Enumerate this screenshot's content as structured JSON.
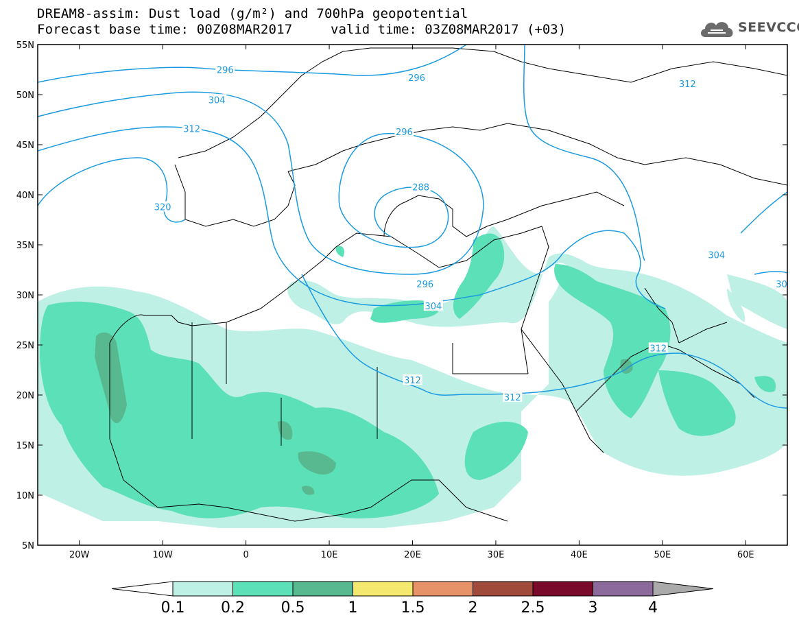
{
  "header": {
    "title_line1": "DREAM8-assim: Dust load (g/m²) and 700hPa geopotential",
    "title_line2": "Forecast base time: 00Z08MAR2017",
    "valid_time": "valid time: 03Z08MAR2017 (+03)",
    "logo_text": "SEEVCCC",
    "logo_icon": "cloud-icon"
  },
  "map": {
    "lon_range": [
      -25,
      65
    ],
    "lat_range": [
      5,
      55
    ],
    "lat_labels": [
      "55N",
      "50N",
      "45N",
      "40N",
      "35N",
      "30N",
      "25N",
      "20N",
      "15N",
      "10N",
      "5N"
    ],
    "lon_labels": [
      "20W",
      "10W",
      "0",
      "10E",
      "20E",
      "30E",
      "40E",
      "50E",
      "60E"
    ],
    "contour_color": "#1a9be0",
    "contour_labels": [
      {
        "text": "296",
        "lon": -2.5,
        "lat": 52.5
      },
      {
        "text": "296",
        "lon": 20.5,
        "lat": 51.7
      },
      {
        "text": "304",
        "lon": -3.5,
        "lat": 49.5
      },
      {
        "text": "312",
        "lon": -6.5,
        "lat": 46.6
      },
      {
        "text": "312",
        "lon": 53,
        "lat": 51.1
      },
      {
        "text": "296",
        "lon": 19,
        "lat": 46.3
      },
      {
        "text": "288",
        "lon": 21,
        "lat": 40.8
      },
      {
        "text": "320",
        "lon": -10,
        "lat": 38.8
      },
      {
        "text": "304",
        "lon": 56.5,
        "lat": 34
      },
      {
        "text": "296",
        "lon": 21.5,
        "lat": 31.1
      },
      {
        "text": "30",
        "lon": 64.3,
        "lat": 31.1
      },
      {
        "text": "304",
        "lon": 22.5,
        "lat": 28.9
      },
      {
        "text": "312",
        "lon": 49.5,
        "lat": 24.7
      },
      {
        "text": "312",
        "lon": 20,
        "lat": 21.5
      },
      {
        "text": "312",
        "lon": 32,
        "lat": 19.8
      }
    ]
  },
  "colorbar": {
    "labels": [
      "0.1",
      "0.2",
      "0.5",
      "1",
      "1.5",
      "2",
      "2.5",
      "3",
      "4"
    ],
    "colors": [
      "#bff0e6",
      "#5be0b8",
      "#58b890",
      "#f5e86e",
      "#e8926a",
      "#a04a3c",
      "#7a0a2c",
      "#8c6a9c"
    ],
    "arrow_left_color": "#ffffff",
    "arrow_right_color": "#aaaaaa"
  }
}
